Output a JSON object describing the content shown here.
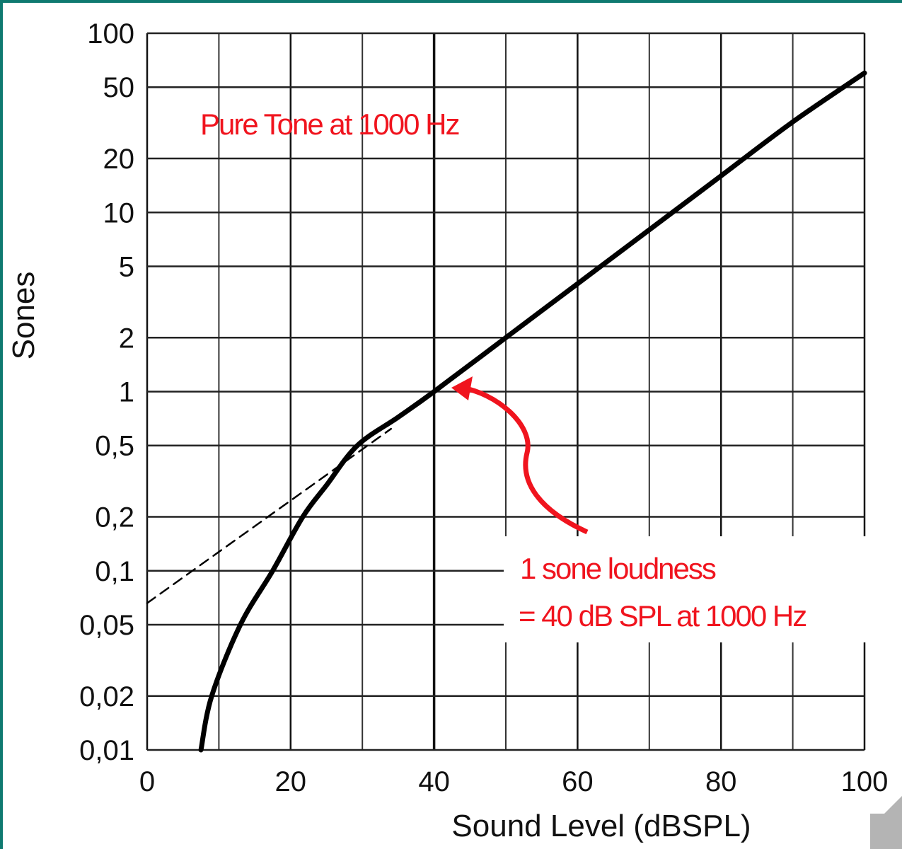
{
  "chart_data": {
    "type": "line",
    "xlabel": "Sound Level (dBSPL)",
    "ylabel": "Sones",
    "xlim": [
      0,
      100
    ],
    "ylim": [
      0.01,
      100
    ],
    "yscale": "log",
    "grid": true,
    "x_ticks": [
      0,
      20,
      40,
      60,
      80,
      100
    ],
    "x_tick_labels": [
      "0",
      "20",
      "40",
      "60",
      "80",
      "100"
    ],
    "y_ticks": [
      100,
      50,
      20,
      10,
      5,
      2,
      1,
      0.5,
      0.2,
      0.1,
      0.05,
      0.02,
      0.01
    ],
    "y_tick_labels": [
      "100",
      "50",
      "20",
      "10",
      "5",
      "2",
      "1",
      "0,5",
      "0,2",
      "0,1",
      "0,05",
      "0,02",
      "0,01"
    ],
    "series": [
      {
        "style": "solid",
        "color": "#000000",
        "x": [
          7.5,
          9,
          13,
          17.5,
          21.7,
          25,
          29.3,
          35,
          40,
          50,
          60,
          70,
          80,
          90,
          100
        ],
        "y": [
          0.01,
          0.02,
          0.05,
          0.1,
          0.2,
          0.3,
          0.5,
          0.72,
          1,
          2,
          4,
          8,
          16,
          32,
          60
        ]
      },
      {
        "style": "dashed",
        "color": "#000000",
        "x": [
          0,
          34
        ],
        "y": [
          0.066,
          0.62
        ]
      }
    ],
    "annotations": [
      {
        "text": "Pure Tone at 1000 Hz",
        "color": "#f0141e"
      },
      {
        "text": "1 sone loudness",
        "color": "#f0141e"
      },
      {
        "text": "= 40 dB SPL at 1000 Hz",
        "color": "#f0141e",
        "points_to": {
          "x": 40,
          "y": 1
        }
      }
    ]
  },
  "colors": {
    "frame": "#0f7a70",
    "annotation": "#f0141e",
    "speaker": "#b4b4b4"
  },
  "icons": {
    "corner": "speaker-icon"
  }
}
